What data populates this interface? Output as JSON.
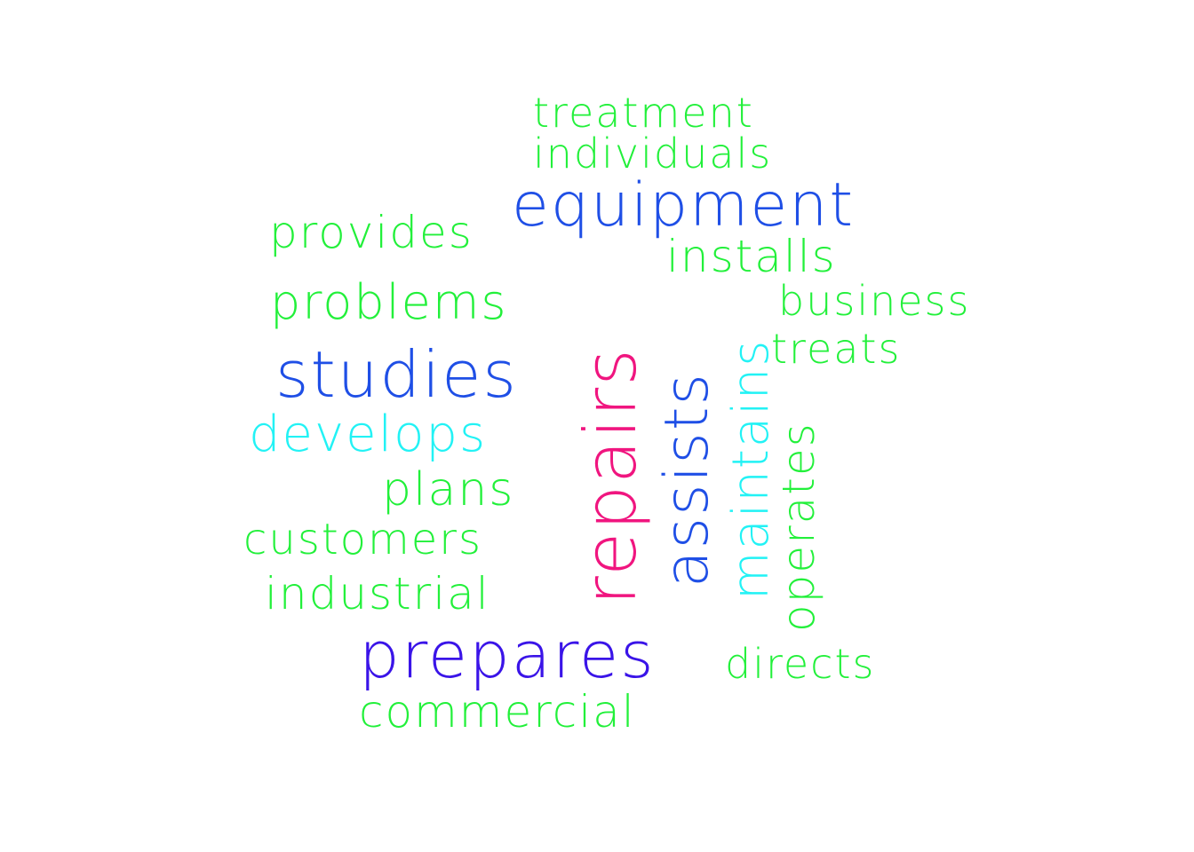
{
  "palette": {
    "green": "#22f03a",
    "blue": "#1f4fe6",
    "cyan": "#22f2f5",
    "magenta": "#f0157f",
    "indigo": "#3a14e8"
  },
  "words": {
    "treatment": "treatment",
    "individuals": "individuals",
    "equipment": "equipment",
    "provides": "provides",
    "installs": "installs",
    "problems": "problems",
    "business": "business",
    "treats": "treats",
    "studies": "studies",
    "develops": "develops",
    "plans": "plans",
    "customers": "customers",
    "industrial": "industrial",
    "prepares": "prepares",
    "directs": "directs",
    "commercial": "commercial",
    "repairs": "repairs",
    "assists": "assists",
    "maintains": "maintains",
    "operates": "operates"
  }
}
